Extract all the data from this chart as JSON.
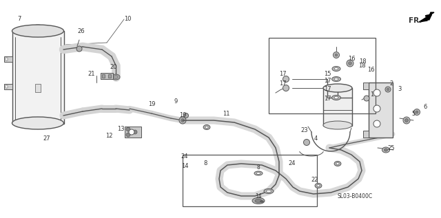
{
  "bg_color": "#ffffff",
  "line_color": "#555555",
  "text_color": "#333333",
  "diagram_code": "SL03-B0400C",
  "fr_label": "FR.",
  "figsize": [
    6.4,
    3.17
  ],
  "dpi": 100
}
